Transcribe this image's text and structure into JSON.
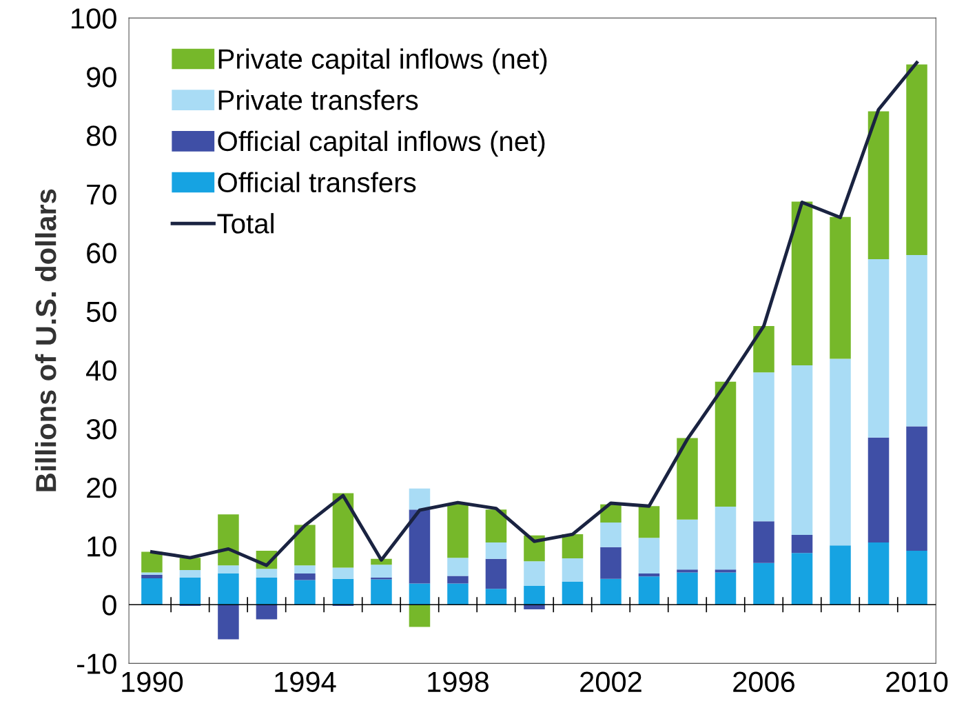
{
  "chart_data": {
    "type": "bar",
    "stacked": true,
    "ylabel": "Billions of U.S. dollars",
    "categories": [
      "1990",
      null,
      null,
      null,
      "1994",
      null,
      null,
      null,
      "1998",
      null,
      null,
      null,
      "2002",
      null,
      null,
      null,
      "2006",
      null,
      null,
      null,
      "2010"
    ],
    "series": [
      {
        "name": "Official transfers",
        "color": "#16a3e2",
        "values": [
          4.5,
          4.6,
          5.3,
          4.6,
          4.2,
          4.4,
          4.3,
          3.6,
          3.6,
          2.7,
          3.2,
          3.9,
          4.4,
          4.8,
          5.5,
          5.5,
          7.1,
          8.8,
          10.1,
          10.6,
          9.2
        ]
      },
      {
        "name": "Official capital inflows (net)",
        "color": "#3f4fa6",
        "values": [
          0.6,
          -0.2,
          -5.9,
          -2.5,
          1.1,
          -0.2,
          0.3,
          12.6,
          1.3,
          5.1,
          -0.8,
          0,
          5.4,
          0.5,
          0.5,
          0.5,
          7.1,
          3.1,
          0,
          17.9,
          21.2
        ]
      },
      {
        "name": "Private transfers",
        "color": "#a9dcf5",
        "values": [
          0.4,
          1.3,
          1.4,
          1.5,
          1.4,
          1.9,
          2.2,
          3.6,
          3.1,
          2.8,
          4.2,
          4.0,
          4.2,
          6.1,
          8.5,
          10.7,
          25.4,
          28.9,
          31.8,
          30.4,
          29.2
        ]
      },
      {
        "name": "Private capital inflows (net)",
        "color": "#76b82a",
        "values": [
          3.5,
          2.1,
          8.7,
          3.1,
          6.9,
          12.7,
          1.0,
          -3.8,
          9.3,
          5.6,
          4.4,
          4.1,
          3.1,
          5.4,
          13.9,
          21.3,
          7.9,
          27.9,
          24.2,
          25.2,
          32.5
        ]
      },
      {
        "name": "Total",
        "type": "line",
        "color": "#1a2341",
        "values": [
          9.0,
          8.0,
          9.5,
          6.7,
          13.5,
          18.6,
          7.6,
          16.1,
          17.4,
          16.4,
          10.8,
          12.0,
          17.3,
          16.8,
          28.2,
          37.6,
          47.5,
          68.6,
          66.0,
          84.4,
          92.4
        ]
      }
    ],
    "ylim": [
      -10,
      100
    ],
    "yticks": [
      -10,
      0,
      10,
      20,
      30,
      40,
      50,
      60,
      70,
      80,
      90,
      100
    ],
    "ref_lines": [
      {
        "axis": "y",
        "value": 0,
        "color": "#000000"
      }
    ],
    "legend": "top left",
    "grid": false
  }
}
